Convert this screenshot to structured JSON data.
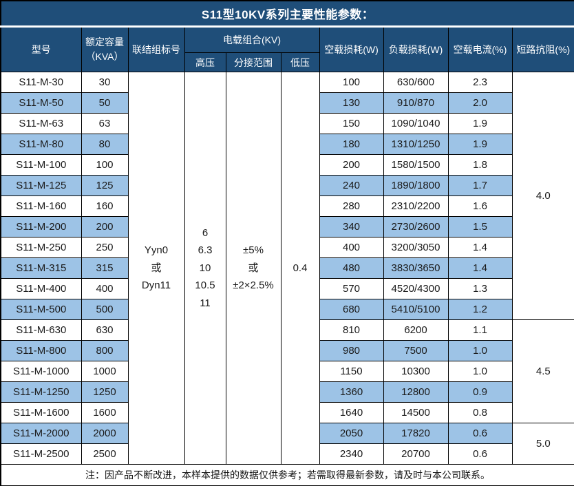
{
  "title": "S11型10KV系列主要性能参数：",
  "colors": {
    "header_bg": "#1F4E79",
    "stripe_bg": "#9DC3E6",
    "border": "#000000",
    "header_text": "#FFFFFF"
  },
  "header": {
    "model": "型号",
    "capacity_line1": "额定容量",
    "capacity_line2": "（KVA）",
    "connection": "联结组标号",
    "voltage_group": "电载组合(KV)",
    "hv": "高压",
    "tap_range": "分接范围",
    "lv": "低压",
    "no_load_loss": "空载损耗(W)",
    "load_loss": "负载损耗(W)",
    "no_load_current": "空载电流(%)",
    "impedance": "短路抗阻(%)"
  },
  "merged": {
    "connection": "Yyn0\n或\nDyn11",
    "hv": "6\n6.3\n10\n10.5\n11",
    "tap_range": "±5%\n或\n±2×2.5%",
    "lv": "0.4"
  },
  "impedance_groups": [
    {
      "value": "4.0",
      "rowspan": 12
    },
    {
      "value": "4.5",
      "rowspan": 5
    },
    {
      "value": "5.0",
      "rowspan": 2
    }
  ],
  "rows": [
    {
      "model": "S11-M-30",
      "kva": "30",
      "no_load_loss": "100",
      "load_loss": "630/600",
      "no_load_current": "2.3"
    },
    {
      "model": "S11-M-50",
      "kva": "50",
      "no_load_loss": "130",
      "load_loss": "910/870",
      "no_load_current": "2.0"
    },
    {
      "model": "S11-M-63",
      "kva": "63",
      "no_load_loss": "150",
      "load_loss": "1090/1040",
      "no_load_current": "1.9"
    },
    {
      "model": "S11-M-80",
      "kva": "80",
      "no_load_loss": "180",
      "load_loss": "1310/1250",
      "no_load_current": "1.9"
    },
    {
      "model": "S11-M-100",
      "kva": "100",
      "no_load_loss": "200",
      "load_loss": "1580/1500",
      "no_load_current": "1.8"
    },
    {
      "model": "S11-M-125",
      "kva": "125",
      "no_load_loss": "240",
      "load_loss": "1890/1800",
      "no_load_current": "1.7"
    },
    {
      "model": "S11-M-160",
      "kva": "160",
      "no_load_loss": "280",
      "load_loss": "2310/2200",
      "no_load_current": "1.6"
    },
    {
      "model": "S11-M-200",
      "kva": "200",
      "no_load_loss": "340",
      "load_loss": "2730/2600",
      "no_load_current": "1.5"
    },
    {
      "model": "S11-M-250",
      "kva": "250",
      "no_load_loss": "400",
      "load_loss": "3200/3050",
      "no_load_current": "1.4"
    },
    {
      "model": "S11-M-315",
      "kva": "315",
      "no_load_loss": "480",
      "load_loss": "3830/3650",
      "no_load_current": "1.4"
    },
    {
      "model": "S11-M-400",
      "kva": "400",
      "no_load_loss": "570",
      "load_loss": "4520/4300",
      "no_load_current": "1.3"
    },
    {
      "model": "S11-M-500",
      "kva": "500",
      "no_load_loss": "680",
      "load_loss": "5410/5100",
      "no_load_current": "1.2"
    },
    {
      "model": "S11-M-630",
      "kva": "630",
      "no_load_loss": "810",
      "load_loss": "6200",
      "no_load_current": "1.1"
    },
    {
      "model": "S11-M-800",
      "kva": "800",
      "no_load_loss": "980",
      "load_loss": "7500",
      "no_load_current": "1.0"
    },
    {
      "model": "S11-M-1000",
      "kva": "1000",
      "no_load_loss": "1150",
      "load_loss": "10300",
      "no_load_current": "1.0"
    },
    {
      "model": "S11-M-1250",
      "kva": "1250",
      "no_load_loss": "1360",
      "load_loss": "12800",
      "no_load_current": "0.9"
    },
    {
      "model": "S11-M-1600",
      "kva": "1600",
      "no_load_loss": "1640",
      "load_loss": "14500",
      "no_load_current": "0.8"
    },
    {
      "model": "S11-M-2000",
      "kva": "2000",
      "no_load_loss": "2050",
      "load_loss": "17820",
      "no_load_current": "0.6"
    },
    {
      "model": "S11-M-2500",
      "kva": "2500",
      "no_load_loss": "2340",
      "load_loss": "20700",
      "no_load_current": "0.6"
    }
  ],
  "note": "注：因产品不断改进，本样本提供的数据仅供参考；若需取得最新参数，请及时与本公司联系。"
}
